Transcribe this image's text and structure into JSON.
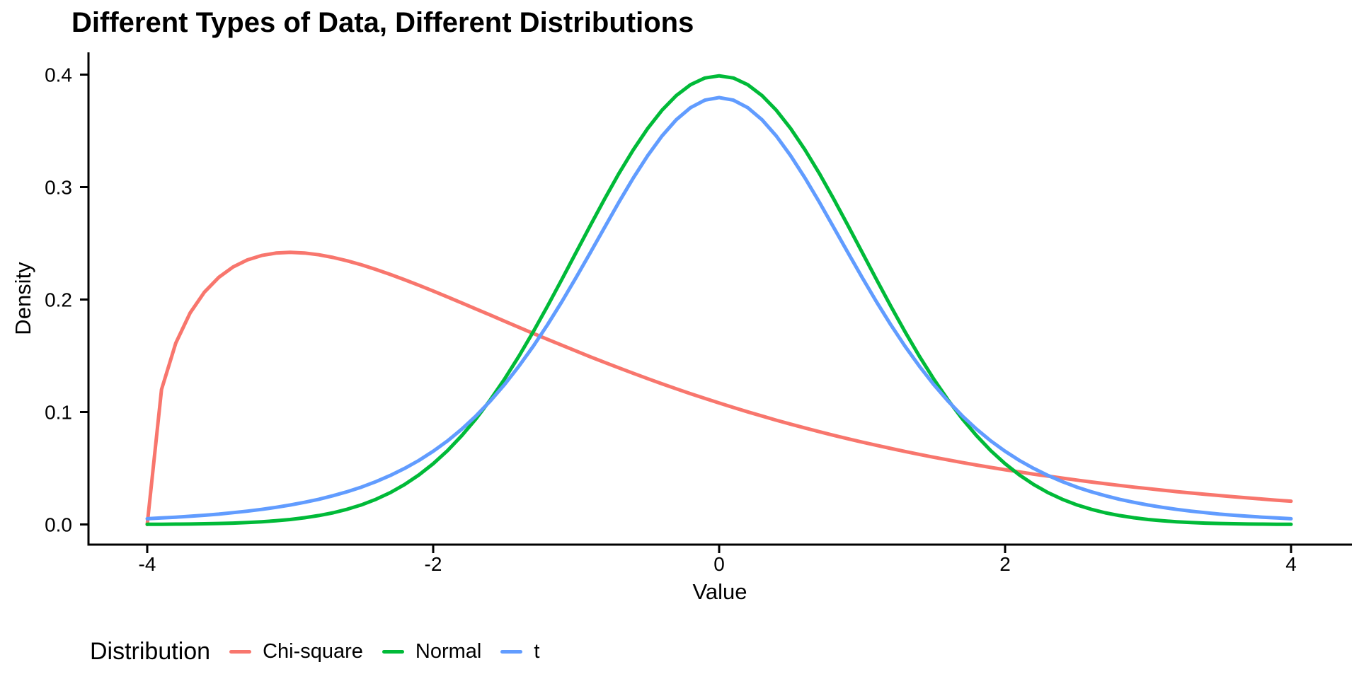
{
  "chart_data": {
    "type": "line",
    "title": "Different Types of Data, Different Distributions",
    "xlabel": "Value",
    "ylabel": "Density",
    "xlim": [
      -4,
      4
    ],
    "ylim": [
      0,
      0.4
    ],
    "grid": false,
    "theme": "classic",
    "axis_color": "#000000",
    "legend": {
      "title": "Distribution",
      "position": "bottom-left"
    },
    "x_ticks": [
      {
        "value": -4,
        "label": "-4"
      },
      {
        "value": -2,
        "label": "-2"
      },
      {
        "value": 0,
        "label": "0"
      },
      {
        "value": 2,
        "label": "2"
      },
      {
        "value": 4,
        "label": "4"
      }
    ],
    "y_ticks": [
      {
        "value": 0.0,
        "label": "0.0"
      },
      {
        "value": 0.1,
        "label": "0.1"
      },
      {
        "value": 0.2,
        "label": "0.2"
      },
      {
        "value": 0.3,
        "label": "0.3"
      },
      {
        "value": 0.4,
        "label": "0.4"
      }
    ],
    "x": [
      -4,
      -3.9,
      -3.8,
      -3.7,
      -3.6,
      -3.5,
      -3.4,
      -3.3,
      -3.2,
      -3.1,
      -3,
      -2.9,
      -2.8,
      -2.7,
      -2.6,
      -2.5,
      -2.4,
      -2.3,
      -2.2,
      -2.1,
      -2,
      -1.9,
      -1.8,
      -1.7,
      -1.6,
      -1.5,
      -1.4,
      -1.3,
      -1.2,
      -1.1,
      -1,
      -0.9,
      -0.8,
      -0.7,
      -0.6,
      -0.5,
      -0.4,
      -0.3,
      -0.2,
      -0.1,
      0,
      0.1,
      0.2,
      0.3,
      0.4,
      0.5,
      0.6,
      0.7,
      0.8,
      0.9,
      1,
      1.1,
      1.2,
      1.3,
      1.4,
      1.5,
      1.6,
      1.7,
      1.8,
      1.9,
      2,
      2.1,
      2.2,
      2.3,
      2.4,
      2.5,
      2.6,
      2.7,
      2.8,
      2.9,
      3,
      3.1,
      3.2,
      3.3,
      3.4,
      3.5,
      3.6,
      3.7,
      3.8,
      3.9,
      4
    ],
    "series": [
      {
        "name": "Chi-square",
        "color": "#F8766D",
        "values": [
          0,
          0.12,
          0.1614,
          0.1881,
          0.2066,
          0.2197,
          0.2289,
          0.2352,
          0.2392,
          0.2413,
          0.242,
          0.2414,
          0.2398,
          0.2374,
          0.2344,
          0.2308,
          0.2267,
          0.2223,
          0.2176,
          0.2127,
          0.2076,
          0.2023,
          0.197,
          0.1916,
          0.1862,
          0.1807,
          0.1753,
          0.1699,
          0.1646,
          0.1594,
          0.1542,
          0.149,
          0.1441,
          0.1392,
          0.1344,
          0.1297,
          0.1251,
          0.1206,
          0.1163,
          0.1121,
          0.108,
          0.104,
          0.1001,
          0.0964,
          0.0927,
          0.0892,
          0.0858,
          0.0825,
          0.0793,
          0.0762,
          0.0732,
          0.0704,
          0.0676,
          0.0649,
          0.0623,
          0.0598,
          0.0574,
          0.0551,
          0.0528,
          0.0507,
          0.0487,
          0.0467,
          0.0447,
          0.043,
          0.0412,
          0.0395,
          0.0378,
          0.0362,
          0.0347,
          0.0332,
          0.0319,
          0.0305,
          0.0292,
          0.028,
          0.0268,
          0.0257,
          0.0246,
          0.0236,
          0.0226,
          0.0216,
          0.0207
        ]
      },
      {
        "name": "Normal",
        "color": "#00BA38",
        "values": [
          0.0001,
          0.0002,
          0.0003,
          0.0004,
          0.0006,
          0.0009,
          0.0012,
          0.0017,
          0.0024,
          0.0033,
          0.0044,
          0.006,
          0.0079,
          0.0104,
          0.0136,
          0.0175,
          0.0224,
          0.0283,
          0.0355,
          0.044,
          0.054,
          0.0656,
          0.079,
          0.094,
          0.1109,
          0.1295,
          0.1497,
          0.1714,
          0.1942,
          0.2179,
          0.242,
          0.2661,
          0.2897,
          0.3123,
          0.3332,
          0.3521,
          0.3683,
          0.3814,
          0.391,
          0.397,
          0.3989,
          0.397,
          0.391,
          0.3814,
          0.3683,
          0.3521,
          0.3332,
          0.3123,
          0.2897,
          0.2661,
          0.242,
          0.2179,
          0.1942,
          0.1714,
          0.1497,
          0.1295,
          0.1109,
          0.094,
          0.079,
          0.0656,
          0.054,
          0.044,
          0.0355,
          0.0283,
          0.0224,
          0.0175,
          0.0136,
          0.0104,
          0.0079,
          0.006,
          0.0044,
          0.0033,
          0.0024,
          0.0017,
          0.0012,
          0.0009,
          0.0006,
          0.0004,
          0.0003,
          0.0002,
          0.0001
        ]
      },
      {
        "name": "t",
        "color": "#619CFF",
        "values": [
          0.0051,
          0.0058,
          0.0065,
          0.0073,
          0.0082,
          0.0092,
          0.0105,
          0.0118,
          0.0134,
          0.0152,
          0.0173,
          0.0197,
          0.0224,
          0.0256,
          0.0292,
          0.0333,
          0.0381,
          0.0436,
          0.0498,
          0.0569,
          0.0651,
          0.0743,
          0.0848,
          0.0966,
          0.1098,
          0.1245,
          0.1408,
          0.1585,
          0.1777,
          0.1981,
          0.2197,
          0.2419,
          0.2644,
          0.2868,
          0.3082,
          0.3279,
          0.3454,
          0.3599,
          0.3706,
          0.3773,
          0.3796,
          0.3773,
          0.3706,
          0.3599,
          0.3454,
          0.3279,
          0.3082,
          0.2868,
          0.2644,
          0.2419,
          0.2197,
          0.1981,
          0.1777,
          0.1585,
          0.1408,
          0.1245,
          0.1098,
          0.0966,
          0.0848,
          0.0743,
          0.0651,
          0.0569,
          0.0498,
          0.0436,
          0.0381,
          0.0333,
          0.0292,
          0.0256,
          0.0224,
          0.0197,
          0.0173,
          0.0152,
          0.0134,
          0.0118,
          0.0105,
          0.0092,
          0.0082,
          0.0073,
          0.0065,
          0.0058,
          0.0051
        ]
      }
    ]
  }
}
